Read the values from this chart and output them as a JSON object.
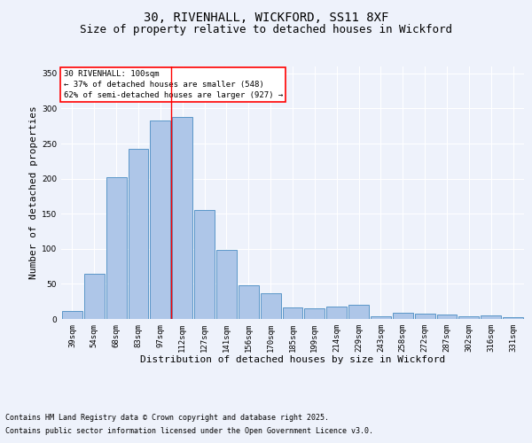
{
  "title_line1": "30, RIVENHALL, WICKFORD, SS11 8XF",
  "title_line2": "Size of property relative to detached houses in Wickford",
  "xlabel": "Distribution of detached houses by size in Wickford",
  "ylabel": "Number of detached properties",
  "categories": [
    "39sqm",
    "54sqm",
    "68sqm",
    "83sqm",
    "97sqm",
    "112sqm",
    "127sqm",
    "141sqm",
    "156sqm",
    "170sqm",
    "185sqm",
    "199sqm",
    "214sqm",
    "229sqm",
    "243sqm",
    "258sqm",
    "272sqm",
    "287sqm",
    "302sqm",
    "316sqm",
    "331sqm"
  ],
  "values": [
    12,
    65,
    202,
    242,
    283,
    288,
    155,
    98,
    48,
    37,
    17,
    15,
    18,
    20,
    4,
    9,
    8,
    6,
    4,
    5,
    3
  ],
  "bar_color": "#aec6e8",
  "bar_edge_color": "#5a96c8",
  "red_line_x": 4.5,
  "annotation_title": "30 RIVENHALL: 100sqm",
  "annotation_line2": "← 37% of detached houses are smaller (548)",
  "annotation_line3": "62% of semi-detached houses are larger (927) →",
  "annotation_box_color": "white",
  "annotation_box_edge_color": "red",
  "ylim": [
    0,
    360
  ],
  "yticks": [
    0,
    50,
    100,
    150,
    200,
    250,
    300,
    350
  ],
  "footnote_line1": "Contains HM Land Registry data © Crown copyright and database right 2025.",
  "footnote_line2": "Contains public sector information licensed under the Open Government Licence v3.0.",
  "background_color": "#eef2fb",
  "grid_color": "white",
  "title_fontsize": 10,
  "subtitle_fontsize": 9,
  "axis_label_fontsize": 8,
  "tick_fontsize": 6.5,
  "annotation_fontsize": 6.5,
  "footnote_fontsize": 6
}
